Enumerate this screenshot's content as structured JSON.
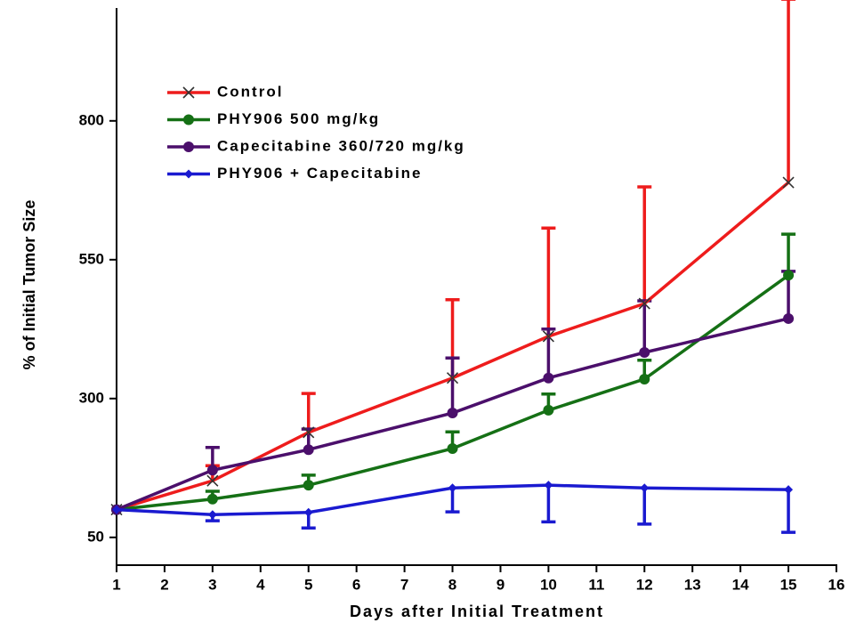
{
  "chart_data": {
    "type": "line",
    "x_label": "Days after Initial Treatment",
    "y_label": "% of Initial Tumor Size",
    "x": [
      1,
      3,
      5,
      8,
      10,
      12,
      15
    ],
    "series": [
      {
        "name": "Control",
        "color": "#ee1c1c",
        "marker": "x",
        "error_direction": "up",
        "values": [
          100,
          152,
          239,
          337,
          412,
          471,
          689
        ],
        "errors": [
          null,
          27,
          70,
          141,
          195,
          210,
          330
        ]
      },
      {
        "name": "PHY906 500 mg/kg",
        "color": "#157015",
        "marker": "circle",
        "error_direction": "up",
        "values": [
          100,
          119,
          144,
          210,
          279,
          335,
          522
        ],
        "errors": [
          null,
          14,
          18,
          30,
          29,
          34,
          74
        ]
      },
      {
        "name": "Capecitabine 360/720 mg/kg",
        "color": "#4b0f6b",
        "marker": "circle",
        "error_direction": "up",
        "values": [
          100,
          171,
          208,
          274,
          337,
          383,
          444
        ],
        "errors": [
          null,
          41,
          37,
          99,
          88,
          93,
          85
        ]
      },
      {
        "name": "PHY906 + Capecitabine",
        "color": "#1a1ad0",
        "marker": "diamond",
        "error_direction": "down",
        "values": [
          100,
          91,
          95,
          139,
          144,
          139,
          136
        ],
        "errors": [
          null,
          11,
          28,
          43,
          66,
          65,
          77
        ]
      }
    ],
    "xlim": [
      1,
      16
    ],
    "xticks": [
      1,
      2,
      3,
      4,
      5,
      6,
      7,
      8,
      9,
      10,
      11,
      12,
      13,
      14,
      15,
      16
    ],
    "ylim": [
      0,
      1000
    ],
    "yticks": [
      50,
      300,
      550,
      800
    ],
    "legend": "upper-left"
  }
}
